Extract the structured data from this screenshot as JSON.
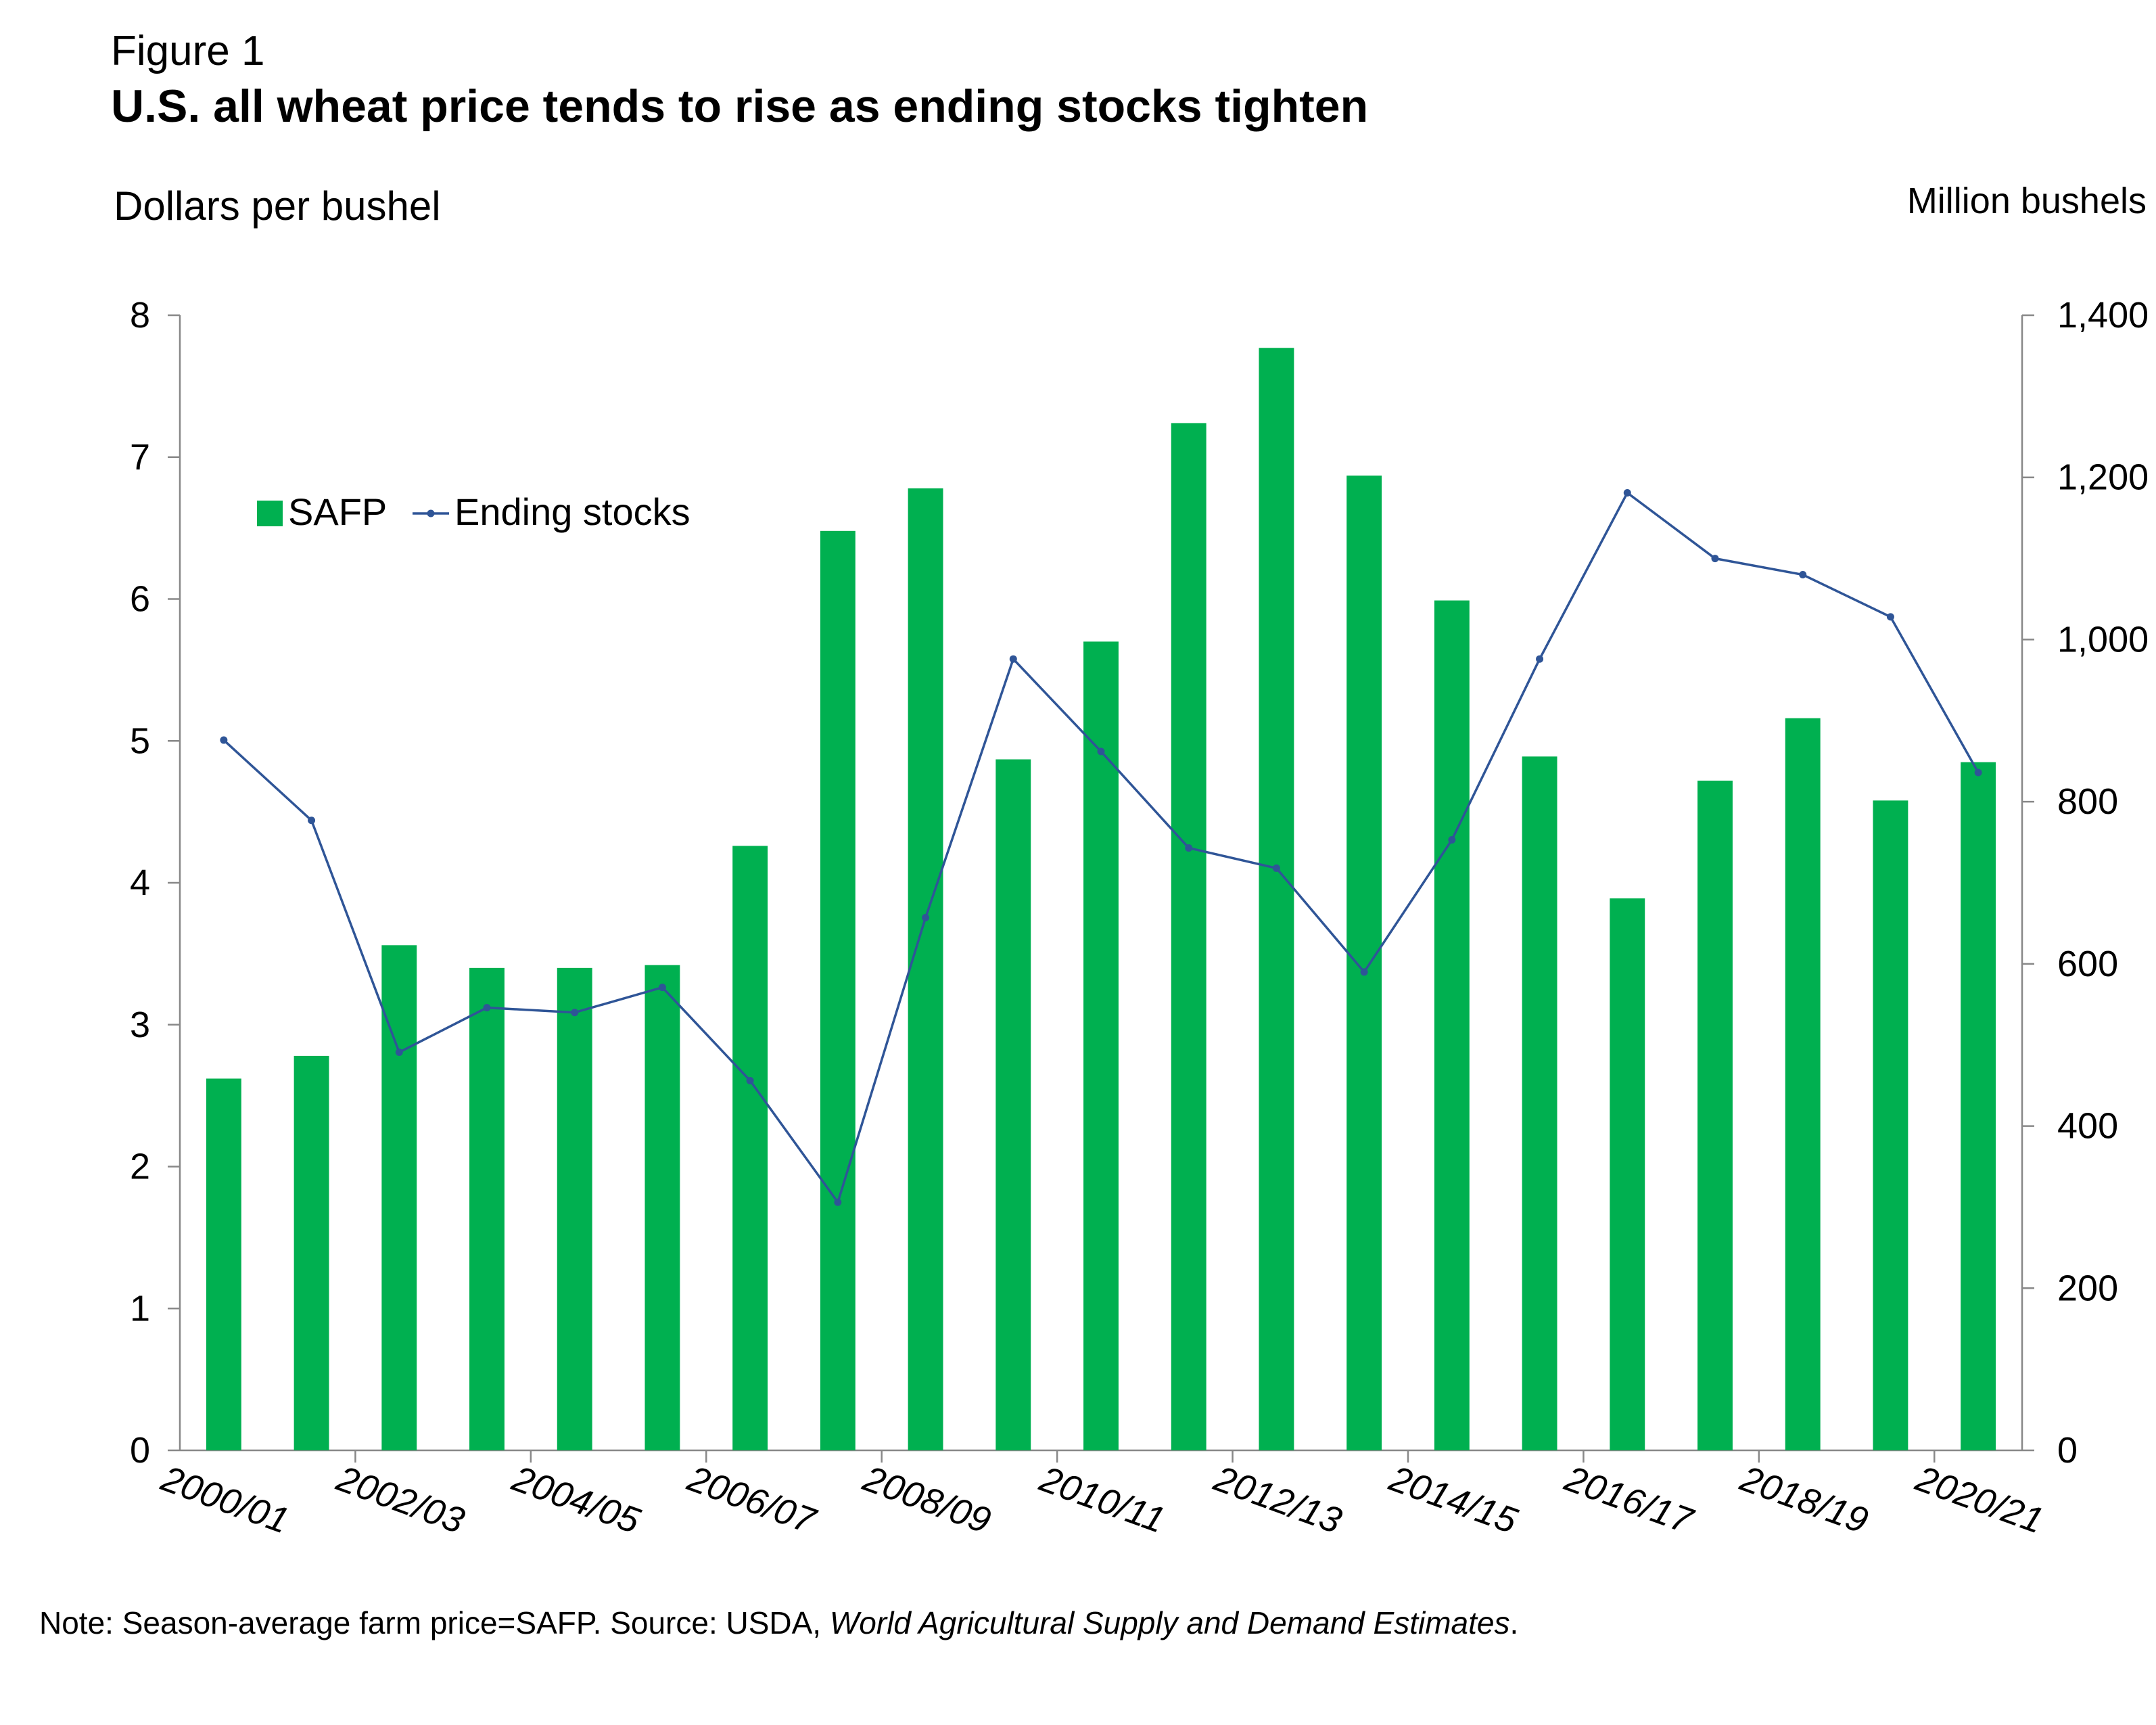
{
  "figure_label": "Figure 1",
  "title": "U.S. all wheat price tends to rise as ending stocks tighten",
  "note": {
    "prefix": "Note: Season-average farm price=SAFP. Source: USDA, ",
    "source_title": "World Agricultural Supply and Demand Estimates",
    "suffix": "."
  },
  "colors": {
    "bars": "#00b050",
    "line": "#2f5597",
    "axis": "#888888"
  },
  "chart_data": {
    "type": "bar",
    "title": "U.S. all wheat price tends to rise as ending stocks tighten",
    "ylabel": "Dollars per bushel",
    "y2label": "Million bushels",
    "ylim": [
      0,
      8
    ],
    "y2lim": [
      0,
      1400
    ],
    "yticks": [
      "0",
      "1",
      "2",
      "3",
      "4",
      "5",
      "6",
      "7",
      "8"
    ],
    "y2ticks": [
      "0",
      "200",
      "400",
      "600",
      "800",
      "1,000",
      "1,200",
      "1,400"
    ],
    "xtick_labels": [
      "2000/01",
      "2002/03",
      "2004/05",
      "2006/07",
      "2008/09",
      "2010/11",
      "2012/13",
      "2014/15",
      "2016/17",
      "2018/19",
      "2020/21"
    ],
    "categories": [
      "2000/01",
      "2001/02",
      "2002/03",
      "2003/04",
      "2004/05",
      "2005/06",
      "2006/07",
      "2007/08",
      "2008/09",
      "2009/10",
      "2010/11",
      "2011/12",
      "2012/13",
      "2013/14",
      "2014/15",
      "2015/16",
      "2016/17",
      "2017/18",
      "2018/19",
      "2019/20",
      "2020/21"
    ],
    "legend_position": "upper-left",
    "series": [
      {
        "name": "SAFP",
        "type": "bar",
        "axis": "left",
        "values": [
          2.62,
          2.78,
          3.56,
          3.4,
          3.4,
          3.42,
          4.26,
          6.48,
          6.78,
          4.87,
          5.7,
          7.24,
          7.77,
          6.87,
          5.99,
          4.89,
          3.89,
          4.72,
          5.16,
          4.58,
          4.85
        ]
      },
      {
        "name": "Ending stocks",
        "type": "line",
        "axis": "right",
        "values": [
          876,
          777,
          491,
          546,
          540,
          571,
          456,
          306,
          657,
          976,
          862,
          743,
          718,
          590,
          753,
          976,
          1181,
          1100,
          1080,
          1028,
          836
        ]
      }
    ]
  }
}
